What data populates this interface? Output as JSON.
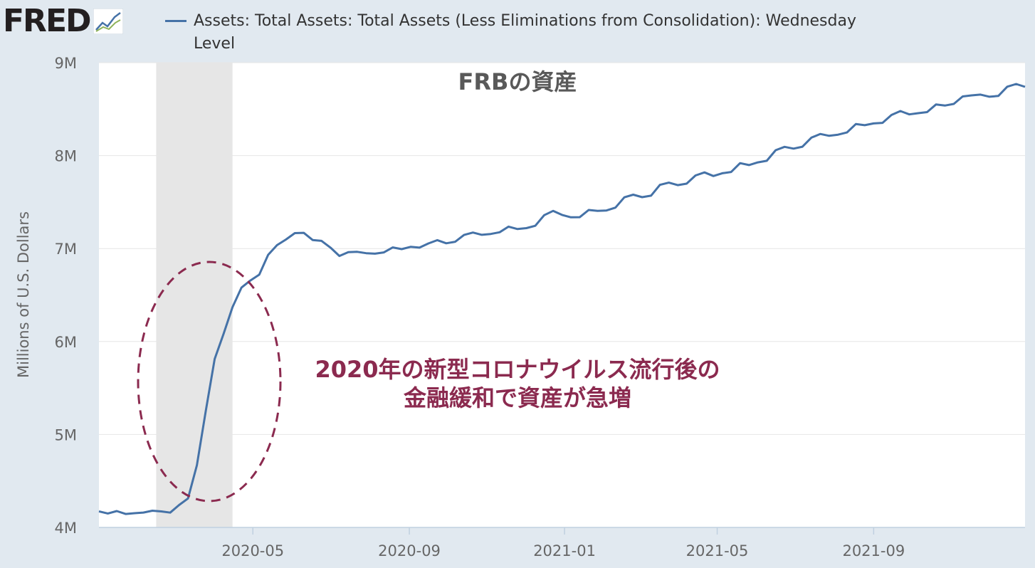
{
  "logo": {
    "text": "FRED",
    "icon": "chart-line-icon"
  },
  "chart_data": {
    "type": "line",
    "title": "FRBの資産",
    "legend": [
      "Assets: Total Assets: Total Assets (Less Eliminations from Consolidation): Wednesday Level"
    ],
    "ylabel": "Millions of U.S. Dollars",
    "xlabel": "",
    "yticks": [
      "4M",
      "5M",
      "6M",
      "7M",
      "8M",
      "9M"
    ],
    "ylim": [
      4000000,
      9000000
    ],
    "xticks": [
      "2020-05",
      "2020-09",
      "2021-01",
      "2021-05",
      "2021-09"
    ],
    "xlim": [
      "2020-01-01",
      "2021-12-29"
    ],
    "grid": "horizontal",
    "recession_shading": {
      "start": "2020-02-15",
      "end": "2020-04-15"
    },
    "series": [
      {
        "name": "Assets: Total Assets: Total Assets (Less Eliminations from Consolidation): Wednesday Level",
        "color": "#4572a7",
        "x": [
          "2020-01-01",
          "2020-01-08",
          "2020-01-15",
          "2020-01-22",
          "2020-01-29",
          "2020-02-05",
          "2020-02-12",
          "2020-02-19",
          "2020-02-26",
          "2020-03-04",
          "2020-03-11",
          "2020-03-18",
          "2020-03-25",
          "2020-04-01",
          "2020-04-08",
          "2020-04-15",
          "2020-04-22",
          "2020-04-29",
          "2020-05-06",
          "2020-05-13",
          "2020-05-20",
          "2020-05-27",
          "2020-06-03",
          "2020-06-10",
          "2020-06-17",
          "2020-06-24",
          "2020-07-01",
          "2020-07-08",
          "2020-07-15",
          "2020-07-22",
          "2020-07-29",
          "2020-08-05",
          "2020-08-12",
          "2020-08-19",
          "2020-08-26",
          "2020-09-02",
          "2020-09-09",
          "2020-09-16",
          "2020-09-23",
          "2020-09-30",
          "2020-10-07",
          "2020-10-14",
          "2020-10-21",
          "2020-10-28",
          "2020-11-04",
          "2020-11-11",
          "2020-11-18",
          "2020-11-25",
          "2020-12-02",
          "2020-12-09",
          "2020-12-16",
          "2020-12-23",
          "2020-12-30",
          "2021-01-06",
          "2021-01-13",
          "2021-01-20",
          "2021-01-27",
          "2021-02-03",
          "2021-02-10",
          "2021-02-17",
          "2021-02-24",
          "2021-03-03",
          "2021-03-10",
          "2021-03-17",
          "2021-03-24",
          "2021-03-31",
          "2021-04-07",
          "2021-04-14",
          "2021-04-21",
          "2021-04-28",
          "2021-05-05",
          "2021-05-12",
          "2021-05-19",
          "2021-05-26",
          "2021-06-02",
          "2021-06-09",
          "2021-06-16",
          "2021-06-23",
          "2021-06-30",
          "2021-07-07",
          "2021-07-14",
          "2021-07-21",
          "2021-07-28",
          "2021-08-04",
          "2021-08-11",
          "2021-08-18",
          "2021-08-25",
          "2021-09-01",
          "2021-09-08",
          "2021-09-15",
          "2021-09-22",
          "2021-09-29",
          "2021-10-06",
          "2021-10-13",
          "2021-10-20",
          "2021-10-27",
          "2021-11-03",
          "2021-11-10",
          "2021-11-17",
          "2021-11-24",
          "2021-12-01",
          "2021-12-08",
          "2021-12-15",
          "2021-12-22",
          "2021-12-29"
        ],
        "y": [
          4173000,
          4150000,
          4176000,
          4145000,
          4153000,
          4160000,
          4180000,
          4172000,
          4159000,
          4241000,
          4312000,
          4669000,
          5254000,
          5813000,
          6083000,
          6369000,
          6580000,
          6656000,
          6719000,
          6933000,
          7037000,
          7097000,
          7166000,
          7169000,
          7092000,
          7083000,
          7010000,
          6920000,
          6962000,
          6965000,
          6950000,
          6945000,
          6959000,
          7012000,
          6994000,
          7018000,
          7010000,
          7055000,
          7090000,
          7057000,
          7073000,
          7146000,
          7172000,
          7148000,
          7157000,
          7175000,
          7236000,
          7210000,
          7220000,
          7245000,
          7359000,
          7405000,
          7362000,
          7336000,
          7338000,
          7415000,
          7405000,
          7410000,
          7440000,
          7551000,
          7580000,
          7553000,
          7569000,
          7685000,
          7709000,
          7682000,
          7698000,
          7786000,
          7819000,
          7780000,
          7810000,
          7824000,
          7919000,
          7898000,
          7927000,
          7944000,
          8058000,
          8094000,
          8075000,
          8096000,
          8193000,
          8233000,
          8213000,
          8225000,
          8249000,
          8339000,
          8327000,
          8346000,
          8352000,
          8437000,
          8479000,
          8443000,
          8456000,
          8468000,
          8550000,
          8538000,
          8556000,
          8636000,
          8648000,
          8656000,
          8633000,
          8642000,
          8741000,
          8770000,
          8740000
        ]
      }
    ]
  },
  "annotation": {
    "line1": "2020年の新型コロナウイルス流行後の",
    "line2": "金融緩和で資産が急増",
    "color": "#8b2a4f"
  }
}
